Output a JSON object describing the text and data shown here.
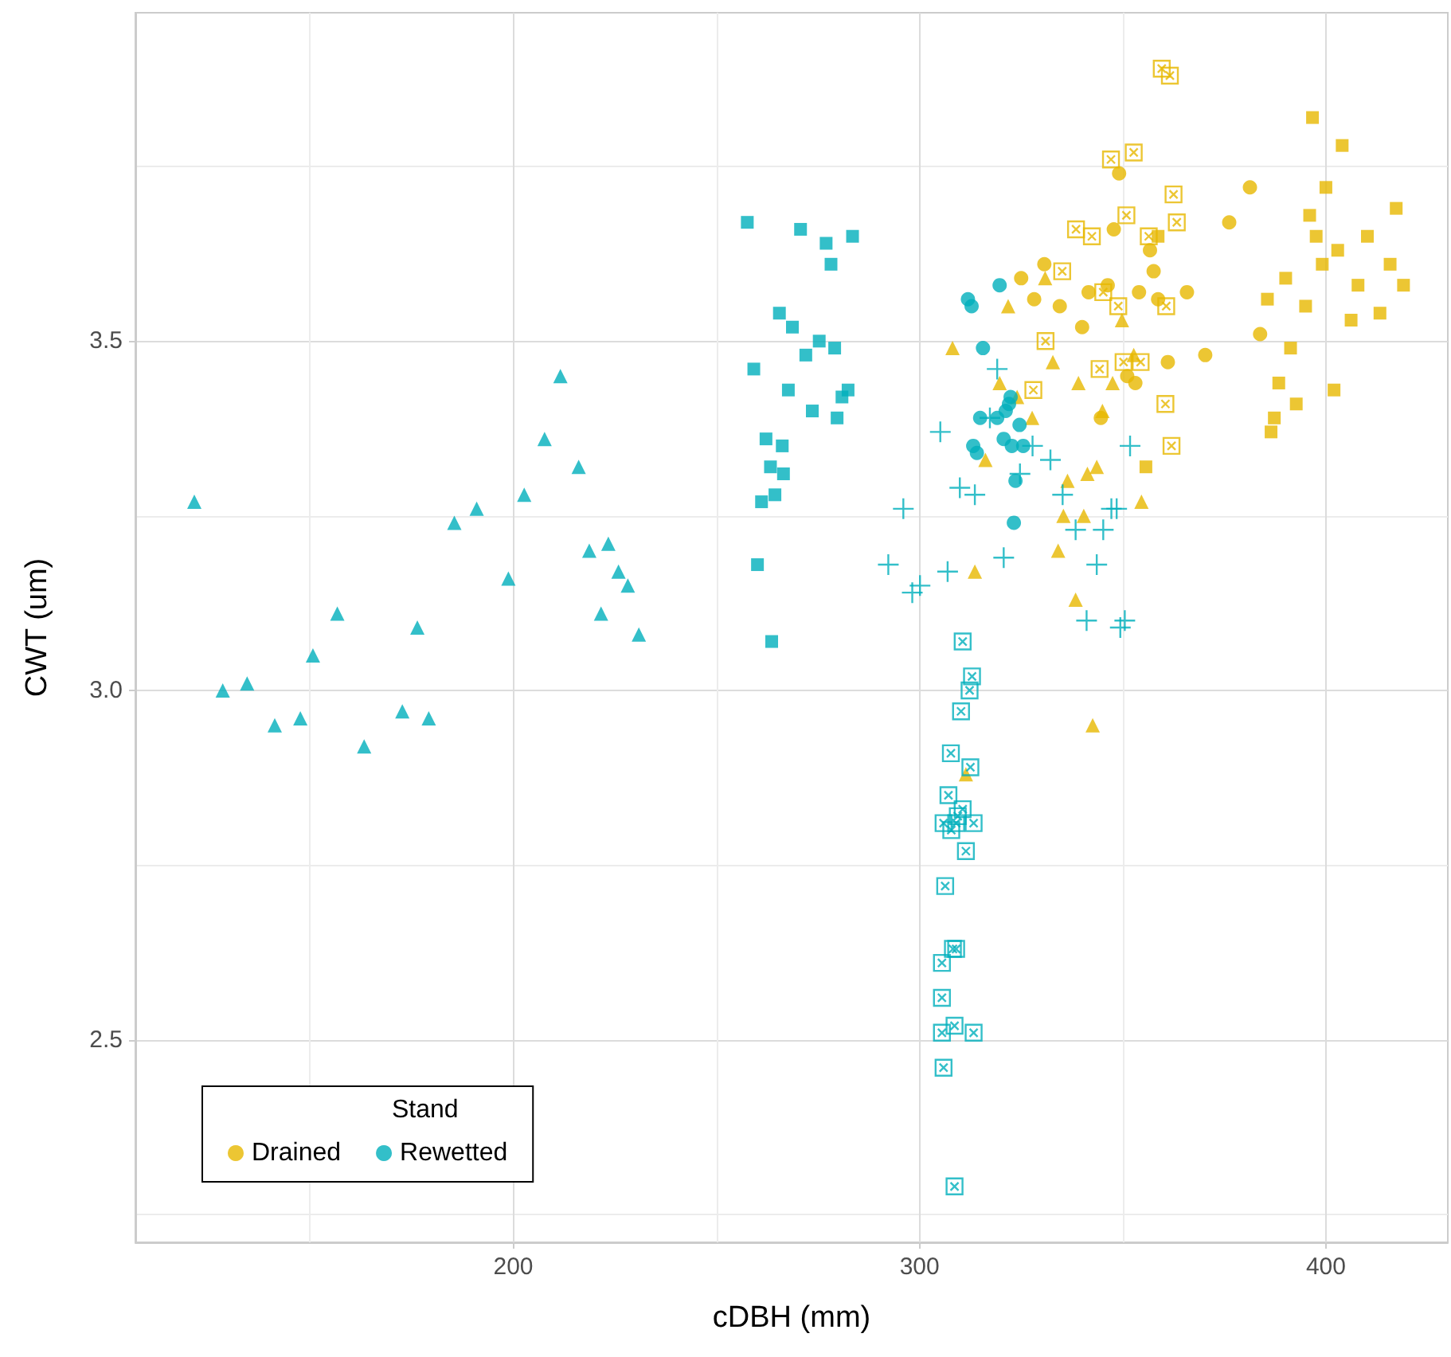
{
  "chart_data": {
    "type": "scatter",
    "xlabel": "cDBH (mm)",
    "ylabel": "CWT (um)",
    "legend_title": "Stand",
    "legend": "bottom left",
    "grid": true,
    "xlim": [
      107,
      430
    ],
    "xticks": [
      200,
      300,
      400
    ],
    "ylim": [
      2.21,
      3.97
    ],
    "yticks": [
      2.5,
      {
        "value": 3,
        "label": "3.0"
      },
      3.5
    ],
    "series": [
      {
        "name": "Drained",
        "color": "#e7b800",
        "marker": "circle",
        "x": [
          349.1,
          381.3,
          376.2,
          347.8,
          356.7,
          357.6,
          341.6,
          346.3,
          354.0,
          358.7,
          365.8,
          340.0,
          383.8,
          370.3,
          361.1,
          351.1,
          353.1,
          344.6,
          330.7,
          325.0,
          328.2,
          334.5
        ],
        "values": [
          3.74,
          3.72,
          3.67,
          3.66,
          3.63,
          3.6,
          3.57,
          3.58,
          3.57,
          3.56,
          3.57,
          3.52,
          3.51,
          3.48,
          3.47,
          3.45,
          3.44,
          3.39,
          3.61,
          3.59,
          3.56,
          3.55
        ]
      },
      {
        "color": "#e7b800",
        "marker": "triangle",
        "x": [
          330.9,
          321.8,
          308.1,
          332.8,
          339.1,
          319.7,
          324.0,
          327.7,
          347.5,
          352.7,
          316.2,
          345.0,
          343.6,
          341.3,
          336.4,
          354.6,
          335.4,
          340.4,
          334.1,
          313.6,
          338.4,
          342.6,
          349.8,
          311.4
        ],
        "values": [
          3.59,
          3.55,
          3.49,
          3.47,
          3.44,
          3.44,
          3.42,
          3.39,
          3.44,
          3.48,
          3.33,
          3.4,
          3.32,
          3.31,
          3.3,
          3.27,
          3.25,
          3.25,
          3.2,
          3.17,
          3.13,
          2.95,
          3.53,
          2.88
        ]
      },
      {
        "color": "#e7b800",
        "marker": "square",
        "x": [
          396.7,
          404.0,
          400.0,
          417.3,
          396.0,
          397.6,
          410.2,
          402.9,
          399.1,
          415.8,
          390.1,
          407.9,
          419.1,
          385.6,
          395.0,
          406.2,
          413.3,
          391.3,
          388.4,
          402.0,
          392.7,
          387.3,
          386.5,
          358.7,
          355.7
        ],
        "values": [
          3.82,
          3.78,
          3.72,
          3.69,
          3.68,
          3.65,
          3.65,
          3.63,
          3.61,
          3.61,
          3.59,
          3.58,
          3.58,
          3.56,
          3.55,
          3.53,
          3.54,
          3.49,
          3.44,
          3.43,
          3.41,
          3.39,
          3.37,
          3.65,
          3.32
        ]
      },
      {
        "color": "#e7b800",
        "x": [
          359.6,
          361.6,
          347.1,
          352.7,
          362.5,
          350.9,
          363.3,
          342.4,
          356.4,
          345.2,
          348.9,
          360.7,
          350.2,
          354.4,
          344.3,
          360.5,
          362.0,
          338.5,
          335.1,
          331.0,
          328.0
        ],
        "values": [
          3.89,
          3.88,
          3.76,
          3.77,
          3.71,
          3.68,
          3.67,
          3.65,
          3.65,
          3.57,
          3.55,
          3.55,
          3.47,
          3.47,
          3.46,
          3.41,
          3.35,
          3.66,
          3.6,
          3.5,
          3.43
        ]
      },
      {
        "name": "Rewetted",
        "color": "#00afbb",
        "marker": "circle",
        "x": [
          319.7,
          311.9,
          312.8,
          315.6,
          322.4,
          321.2,
          319.1,
          324.6,
          313.2,
          314.1,
          320.7,
          322.7,
          325.5,
          323.6,
          323.2,
          314.9,
          322.0
        ],
        "values": [
          3.58,
          3.56,
          3.55,
          3.49,
          3.42,
          3.4,
          3.39,
          3.38,
          3.35,
          3.34,
          3.36,
          3.35,
          3.35,
          3.3,
          3.24,
          3.39,
          3.41
        ]
      },
      {
        "color": "#00afbb",
        "marker": "triangle",
        "x": [
          121.5,
          185.5,
          191.0,
          202.7,
          216.1,
          218.7,
          223.4,
          225.9,
          228.2,
          221.6,
          230.9,
          198.8,
          156.7,
          176.4,
          150.7,
          128.5,
          134.5,
          141.3,
          147.6,
          163.3,
          172.7,
          179.2,
          211.6,
          207.7
        ],
        "values": [
          3.27,
          3.24,
          3.26,
          3.28,
          3.32,
          3.2,
          3.21,
          3.17,
          3.15,
          3.11,
          3.08,
          3.16,
          3.11,
          3.09,
          3.05,
          3.0,
          3.01,
          2.95,
          2.96,
          2.92,
          2.97,
          2.96,
          3.45,
          3.36
        ]
      },
      {
        "color": "#00afbb",
        "marker": "square",
        "x": [
          257.6,
          270.7,
          277.0,
          283.5,
          278.2,
          265.5,
          268.7,
          275.3,
          279.1,
          272.0,
          259.2,
          267.7,
          282.4,
          280.9,
          273.6,
          279.7,
          262.2,
          266.2,
          263.3,
          266.5,
          264.4,
          261.1,
          260.1,
          263.6
        ],
        "values": [
          3.67,
          3.66,
          3.64,
          3.65,
          3.61,
          3.54,
          3.52,
          3.5,
          3.49,
          3.48,
          3.46,
          3.43,
          3.43,
          3.42,
          3.4,
          3.39,
          3.36,
          3.35,
          3.32,
          3.31,
          3.28,
          3.27,
          3.18,
          3.07
        ]
      },
      {
        "color": "#00afbb",
        "x": [
          310.6,
          312.9,
          312.3,
          310.2,
          307.7,
          312.5,
          307.1,
          310.6,
          309.4,
          305.9,
          309.0,
          313.3,
          307.8,
          311.4,
          306.3,
          308.2,
          309.0,
          305.5,
          305.5,
          305.5,
          313.3,
          308.6,
          305.9,
          308.6
        ],
        "values": [
          3.07,
          3.02,
          3.0,
          2.97,
          2.91,
          2.89,
          2.85,
          2.83,
          2.82,
          2.81,
          2.81,
          2.81,
          2.8,
          2.77,
          2.72,
          2.63,
          2.63,
          2.61,
          2.56,
          2.51,
          2.51,
          2.52,
          2.46,
          2.29
        ]
      },
      {
        "color": "#00afbb",
        "marker": "cross",
        "x": [
          319.1,
          305.1,
          317.3,
          327.8,
          332.2,
          324.7,
          309.9,
          313.6,
          335.2,
          296.0,
          347.2,
          348.5,
          351.8,
          338.4,
          345.2,
          292.3,
          306.9,
          320.7,
          343.6,
          300.1,
          298.2,
          341.1,
          349.4,
          350.5
        ],
        "values": [
          3.46,
          3.37,
          3.39,
          3.35,
          3.33,
          3.31,
          3.29,
          3.28,
          3.28,
          3.26,
          3.26,
          3.26,
          3.35,
          3.23,
          3.23,
          3.18,
          3.17,
          3.19,
          3.18,
          3.15,
          3.14,
          3.1,
          3.09,
          3.1
        ]
      }
    ]
  }
}
